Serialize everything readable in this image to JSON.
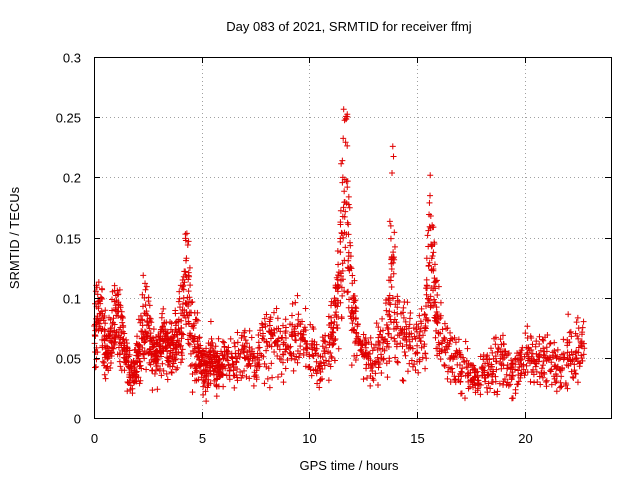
{
  "chart_data": {
    "type": "scatter",
    "title": "Day 083 of 2021, SRMTID for receiver ffmj",
    "xlabel": "GPS time / hours",
    "ylabel": "SRMTID / TECUs",
    "xlim": [
      0,
      24
    ],
    "ylim": [
      0,
      0.3
    ],
    "x_ticks": [
      0,
      5,
      10,
      15,
      20
    ],
    "x_tick_labels": [
      "0",
      "5",
      "10",
      "15",
      "20"
    ],
    "y_ticks": [
      0,
      0.05,
      0.1,
      0.15,
      0.2,
      0.25,
      0.3
    ],
    "y_tick_labels": [
      "0",
      "0.05",
      "0.1",
      "0.15",
      "0.2",
      "0.25",
      "0.3"
    ],
    "grid": true,
    "marker": "plus",
    "color": "#e00000",
    "series": [
      {
        "name": "SRMTID",
        "x": [
          0.0,
          0.1,
          0.2,
          0.3,
          0.4,
          0.5,
          0.6,
          0.7,
          0.8,
          0.9,
          1.0,
          1.1,
          1.2,
          1.3,
          1.4,
          1.5,
          1.6,
          1.7,
          1.8,
          1.9,
          2.0,
          2.1,
          2.2,
          2.3,
          2.4,
          2.5,
          2.6,
          2.7,
          2.8,
          2.9,
          3.0,
          3.1,
          3.2,
          3.3,
          3.4,
          3.5,
          3.6,
          3.7,
          3.8,
          3.9,
          4.0,
          4.1,
          4.2,
          4.3,
          4.4,
          4.5,
          4.6,
          4.7,
          4.8,
          4.9,
          5.0,
          5.1,
          5.2,
          5.3,
          5.4,
          5.5,
          5.6,
          5.7,
          5.8,
          5.9,
          6.0,
          6.2,
          6.4,
          6.6,
          6.8,
          7.0,
          7.2,
          7.4,
          7.6,
          7.8,
          8.0,
          8.2,
          8.4,
          8.6,
          8.8,
          9.0,
          9.2,
          9.4,
          9.6,
          9.8,
          10.0,
          10.2,
          10.4,
          10.6,
          10.8,
          11.0,
          11.1,
          11.2,
          11.3,
          11.4,
          11.5,
          11.6,
          11.7,
          11.8,
          11.9,
          12.0,
          12.1,
          12.2,
          12.4,
          12.6,
          12.8,
          13.0,
          13.2,
          13.4,
          13.6,
          13.7,
          13.8,
          13.9,
          14.0,
          14.2,
          14.4,
          14.6,
          14.8,
          15.0,
          15.2,
          15.4,
          15.5,
          15.6,
          15.7,
          15.8,
          15.9,
          16.0,
          16.2,
          16.4,
          16.6,
          16.8,
          17.0,
          17.2,
          17.4,
          17.6,
          17.8,
          18.0,
          18.2,
          18.4,
          18.6,
          18.8,
          19.0,
          19.2,
          19.4,
          19.6,
          19.8,
          20.0,
          20.2,
          20.4,
          20.6,
          20.8,
          21.0,
          21.2,
          21.4,
          21.6,
          21.8,
          22.0,
          22.2,
          22.4,
          22.6,
          22.8
        ],
        "y_mid": [
          0.065,
          0.07,
          0.09,
          0.085,
          0.075,
          0.06,
          0.055,
          0.06,
          0.07,
          0.075,
          0.08,
          0.085,
          0.075,
          0.065,
          0.055,
          0.05,
          0.045,
          0.04,
          0.035,
          0.035,
          0.045,
          0.055,
          0.065,
          0.075,
          0.08,
          0.075,
          0.065,
          0.055,
          0.05,
          0.05,
          0.055,
          0.06,
          0.065,
          0.065,
          0.06,
          0.055,
          0.055,
          0.06,
          0.065,
          0.07,
          0.075,
          0.085,
          0.1,
          0.11,
          0.1,
          0.08,
          0.065,
          0.06,
          0.055,
          0.05,
          0.045,
          0.04,
          0.04,
          0.045,
          0.05,
          0.05,
          0.045,
          0.04,
          0.04,
          0.045,
          0.05,
          0.05,
          0.045,
          0.045,
          0.05,
          0.055,
          0.05,
          0.045,
          0.05,
          0.055,
          0.06,
          0.065,
          0.065,
          0.06,
          0.055,
          0.06,
          0.065,
          0.07,
          0.065,
          0.06,
          0.055,
          0.05,
          0.045,
          0.05,
          0.055,
          0.065,
          0.075,
          0.09,
          0.1,
          0.12,
          0.15,
          0.18,
          0.2,
          0.15,
          0.11,
          0.09,
          0.08,
          0.07,
          0.06,
          0.055,
          0.05,
          0.05,
          0.055,
          0.06,
          0.07,
          0.09,
          0.13,
          0.12,
          0.09,
          0.075,
          0.07,
          0.065,
          0.06,
          0.06,
          0.065,
          0.08,
          0.11,
          0.15,
          0.13,
          0.1,
          0.085,
          0.075,
          0.065,
          0.055,
          0.05,
          0.045,
          0.045,
          0.04,
          0.04,
          0.035,
          0.035,
          0.035,
          0.04,
          0.04,
          0.04,
          0.045,
          0.045,
          0.045,
          0.04,
          0.04,
          0.045,
          0.05,
          0.05,
          0.05,
          0.05,
          0.045,
          0.045,
          0.05,
          0.05,
          0.045,
          0.045,
          0.05,
          0.055,
          0.06,
          0.065,
          0.065
        ],
        "y_spread": [
          0.03,
          0.03,
          0.035,
          0.03,
          0.03,
          0.025,
          0.025,
          0.025,
          0.03,
          0.03,
          0.03,
          0.03,
          0.025,
          0.025,
          0.02,
          0.02,
          0.02,
          0.02,
          0.015,
          0.015,
          0.02,
          0.025,
          0.03,
          0.035,
          0.04,
          0.03,
          0.025,
          0.025,
          0.02,
          0.02,
          0.025,
          0.025,
          0.025,
          0.025,
          0.025,
          0.02,
          0.02,
          0.025,
          0.025,
          0.03,
          0.03,
          0.035,
          0.04,
          0.05,
          0.045,
          0.035,
          0.03,
          0.025,
          0.025,
          0.02,
          0.02,
          0.02,
          0.02,
          0.02,
          0.025,
          0.02,
          0.02,
          0.02,
          0.02,
          0.02,
          0.02,
          0.02,
          0.02,
          0.02,
          0.02,
          0.025,
          0.02,
          0.02,
          0.02,
          0.025,
          0.025,
          0.03,
          0.025,
          0.025,
          0.025,
          0.025,
          0.025,
          0.03,
          0.025,
          0.025,
          0.02,
          0.02,
          0.02,
          0.02,
          0.025,
          0.025,
          0.03,
          0.035,
          0.04,
          0.05,
          0.07,
          0.08,
          0.08,
          0.06,
          0.04,
          0.035,
          0.03,
          0.025,
          0.02,
          0.02,
          0.02,
          0.02,
          0.02,
          0.025,
          0.03,
          0.04,
          0.08,
          0.07,
          0.04,
          0.03,
          0.03,
          0.025,
          0.025,
          0.025,
          0.03,
          0.035,
          0.05,
          0.06,
          0.05,
          0.04,
          0.035,
          0.03,
          0.025,
          0.02,
          0.02,
          0.02,
          0.02,
          0.02,
          0.02,
          0.015,
          0.015,
          0.015,
          0.02,
          0.02,
          0.02,
          0.02,
          0.02,
          0.02,
          0.02,
          0.02,
          0.02,
          0.02,
          0.02,
          0.02,
          0.02,
          0.02,
          0.02,
          0.02,
          0.02,
          0.02,
          0.02,
          0.025,
          0.025,
          0.025,
          0.025,
          0.02
        ]
      }
    ]
  }
}
